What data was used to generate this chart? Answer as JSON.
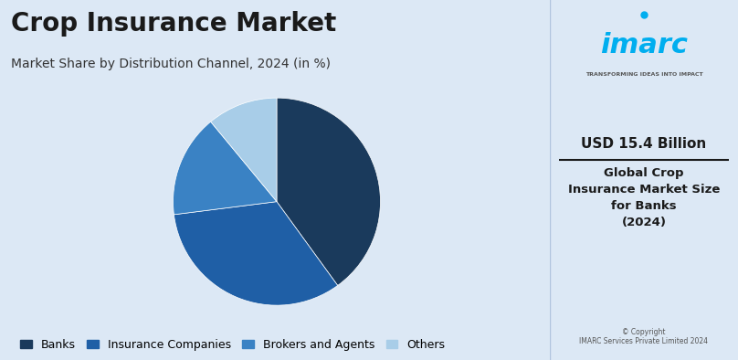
{
  "title": "Crop Insurance Market",
  "subtitle": "Market Share by Distribution Channel, 2024 (in %)",
  "slices": [
    {
      "label": "Banks",
      "value": 40,
      "color": "#1a3a5c"
    },
    {
      "label": "Insurance Companies",
      "value": 33,
      "color": "#1f5fa6"
    },
    {
      "label": "Brokers and Agents",
      "value": 16,
      "color": "#3a82c4"
    },
    {
      "label": "Others",
      "value": 11,
      "color": "#a8cde8"
    }
  ],
  "bg_color": "#dce8f5",
  "right_panel_bg": "#f0f5fb",
  "usd_text": "USD 15.4 Billion",
  "desc_text": "Global Crop\nInsurance Market Size\nfor Banks\n(2024)",
  "copyright_text": "© Copyright\nIMARC Services Private Limited 2024",
  "imarc_color": "#00aeef",
  "transforming_text": "TRANSFORMING IDEAS INTO IMPACT",
  "start_angle": 90,
  "legend_fontsize": 9,
  "title_fontsize": 20,
  "subtitle_fontsize": 10
}
